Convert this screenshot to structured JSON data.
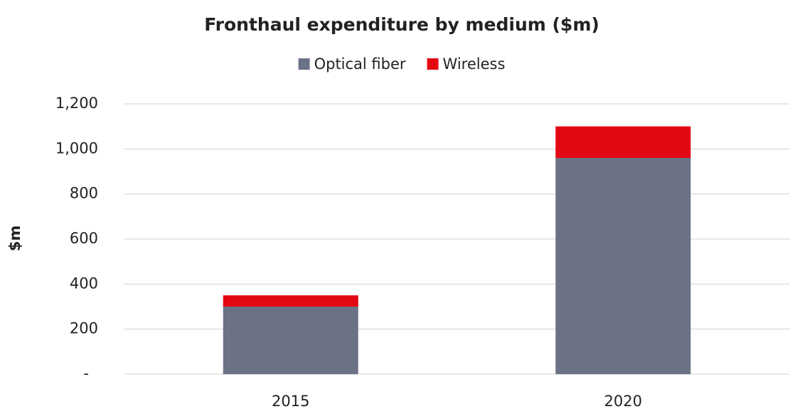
{
  "chart_data": {
    "type": "stacked_bar",
    "title": "Fronthaul expenditure by medium ($m)",
    "y_label": "$m",
    "categories": [
      "2015",
      "2020"
    ],
    "series": [
      {
        "name": "Optical fiber",
        "color": "#6b7285",
        "values": [
          300,
          960
        ]
      },
      {
        "name": "Wireless",
        "color": "#e30613",
        "values": [
          50,
          140
        ]
      }
    ],
    "ylim": [
      0,
      1200
    ],
    "yticks": [
      {
        "value": 0,
        "label": "-"
      },
      200,
      400,
      600,
      800,
      {
        "value": 1000,
        "label": "1,000"
      },
      {
        "value": 1200,
        "label": "1,200"
      }
    ],
    "grid": true,
    "legend": "top"
  }
}
